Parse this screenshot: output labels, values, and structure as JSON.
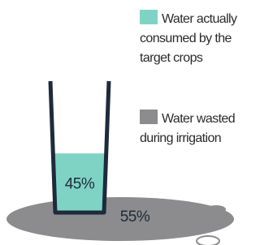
{
  "chart_data": {
    "type": "glass",
    "categories": [
      "Water actually consumed by the target crops",
      "Water wasted during irrigation"
    ],
    "values": [
      45,
      55
    ],
    "value_labels": [
      "45%",
      "55%"
    ],
    "colors": [
      "#7fd3c5",
      "#8c8c8e"
    ]
  }
}
